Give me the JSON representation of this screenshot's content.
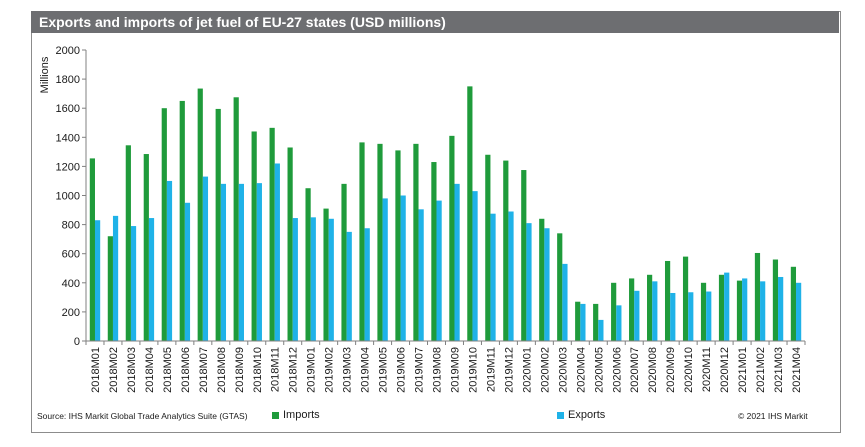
{
  "title": "Exports and imports of jet fuel of EU-27 states (USD millions)",
  "footer": {
    "source": "Source: IHS Markit Global Trade Analytics Suite (GTAS)",
    "copyright": "© 2021 IHS Markit"
  },
  "colors": {
    "imports": "#1f9b3b",
    "exports": "#1fb2e8",
    "title_bg": "#6d6e71",
    "axis": "#808080"
  },
  "chart_data": {
    "type": "bar",
    "title": "Exports and imports of jet fuel of EU-27 states (USD millions)",
    "xlabel": "",
    "ylabel": "Millions",
    "ylim": [
      0,
      2000
    ],
    "yticks": [
      0,
      200,
      400,
      600,
      800,
      1000,
      1200,
      1400,
      1600,
      1800,
      2000
    ],
    "legend_position": "bottom",
    "categories": [
      "2018M01",
      "2018M02",
      "2018M03",
      "2018M04",
      "2018M05",
      "2018M06",
      "2018M07",
      "2018M08",
      "2018M09",
      "2018M10",
      "2018M11",
      "2018M12",
      "2019M01",
      "2019M02",
      "2019M03",
      "2019M04",
      "2019M05",
      "2019M06",
      "2019M07",
      "2019M08",
      "2019M09",
      "2019M10",
      "2019M11",
      "2019M12",
      "2020M01",
      "2020M02",
      "2020M03",
      "2020M04",
      "2020M05",
      "2020M06",
      "2020M07",
      "2020M08",
      "2020M09",
      "2020M10",
      "2020M11",
      "2020M12",
      "2021M01",
      "2021M02",
      "2021M03",
      "2021M04"
    ],
    "series": [
      {
        "name": "Imports",
        "values": [
          1255,
          720,
          1345,
          1285,
          1600,
          1650,
          1735,
          1595,
          1675,
          1440,
          1465,
          1330,
          1050,
          910,
          1080,
          1365,
          1355,
          1310,
          1355,
          1230,
          1410,
          1750,
          1280,
          1240,
          1175,
          840,
          740,
          270,
          255,
          400,
          430,
          455,
          550,
          580,
          400,
          455,
          415,
          605,
          560,
          510
        ]
      },
      {
        "name": "Exports",
        "values": [
          830,
          860,
          790,
          845,
          1100,
          950,
          1130,
          1080,
          1080,
          1085,
          1220,
          845,
          850,
          840,
          750,
          775,
          980,
          1000,
          905,
          965,
          1080,
          1030,
          875,
          890,
          810,
          775,
          530,
          255,
          145,
          245,
          345,
          410,
          330,
          335,
          340,
          470,
          430,
          410,
          440,
          400
        ]
      }
    ]
  }
}
